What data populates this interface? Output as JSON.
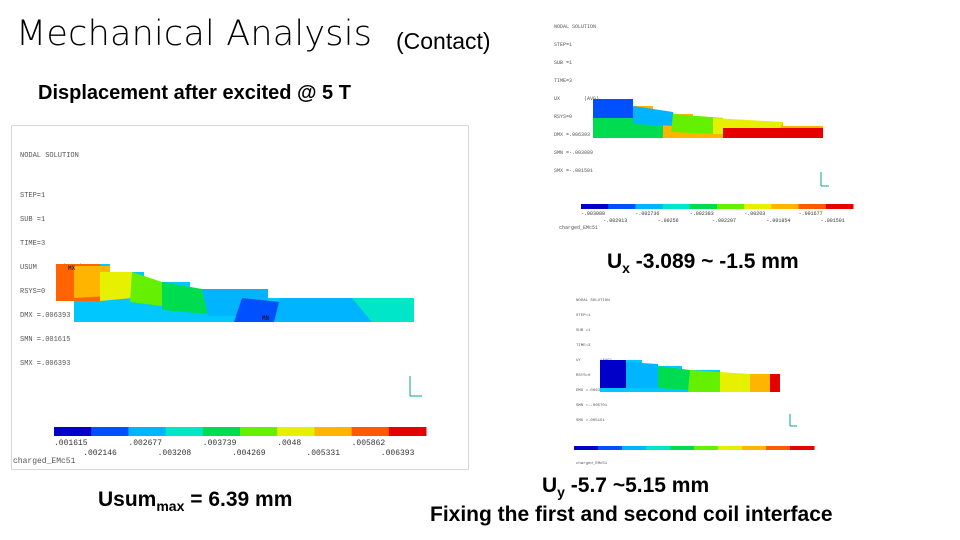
{
  "slide": {
    "title": "Mechanical Analysis",
    "title_suffix": "(Contact)",
    "subheading": "Displacement after excited @ 5 T"
  },
  "captions": {
    "ux": {
      "sym": "U",
      "sub": "x",
      "rest": " -3.089 ~ -1.5 mm"
    },
    "usum": {
      "sym": "Usum",
      "sub": "max",
      "rest": " = 6.39 mm"
    },
    "uy": {
      "sym": "U",
      "sub": "y",
      "rest": " -5.7 ~5.15 mm"
    },
    "fixing": "Fixing the first and second coil interface"
  },
  "main_plot": {
    "header": [
      "NODAL SOLUTION",
      "",
      "STEP=1",
      "SUB =1",
      "TIME=3",
      "USUM      (AVG)",
      "RSYS=0",
      "DMX =.006393",
      "SMN =.001615",
      "SMX =.006393"
    ],
    "mx_label": "MX",
    "mn_label": "MN",
    "footer": "charged_EMc51",
    "legend_top": [
      ".001615",
      ".002677",
      ".003739",
      ".0048",
      ".005862"
    ],
    "legend_bottom": [
      ".002146",
      ".003208",
      ".004269",
      ".005331",
      ".006393"
    ],
    "colors": [
      "#0000c8",
      "#0050ff",
      "#00b4ff",
      "#00e6c8",
      "#00dc50",
      "#64f000",
      "#e6f000",
      "#ffb400",
      "#ff5a00",
      "#e60000"
    ]
  },
  "ux_plot": {
    "header": [
      "NODAL SOLUTION",
      "STEP=1",
      "SUB =1",
      "TIME=3",
      "UX        (AVG)",
      "RSYS=0",
      "DMX =.006393",
      "SMN =-.003089",
      "SMX =-.001501"
    ],
    "footer": "charged_EMc51",
    "legend_top": [
      "-.003089",
      "-.002736",
      "-.002383",
      "-.00203",
      "-.001677"
    ],
    "legend_bottom": [
      "-.002913",
      "-.00256",
      "-.002207",
      "-.001854",
      "-.001501"
    ]
  },
  "uy_plot": {
    "header": [
      "NODAL SOLUTION",
      "STEP=1",
      "SUB =1",
      "TIME=3",
      "UY        (AVG)",
      "RSYS=0",
      "DMX =.006393",
      "SMN =-.005701",
      "SMX =.005151"
    ],
    "footer": "charged_EMc51"
  }
}
